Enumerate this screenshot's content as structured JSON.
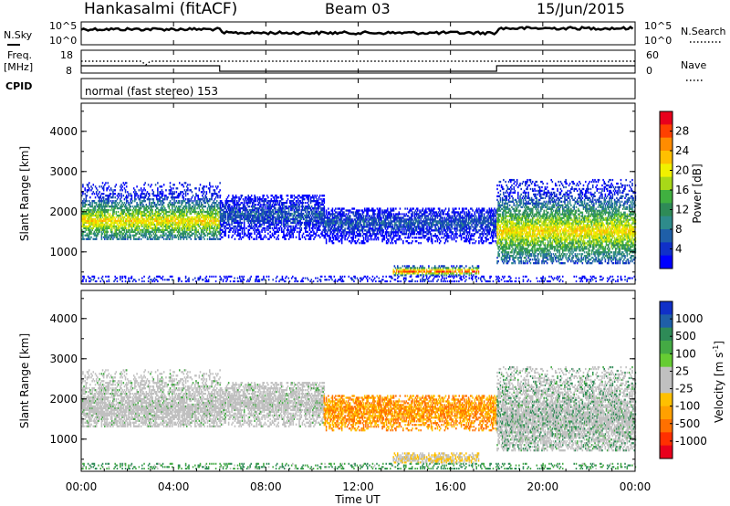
{
  "header": {
    "station": "Hankasalmi (fitACF)",
    "beam": "Beam 03",
    "date": "15/Jun/2015"
  },
  "noise_panel": {
    "left_label": "N.Sky",
    "right_label": "N.Search",
    "left_ticks": [
      "10^5",
      "10^0"
    ],
    "right_ticks": [
      "10^5",
      "10^0"
    ]
  },
  "freq_panel": {
    "left_label_1": "Freq.",
    "left_label_2": "[MHz]",
    "right_label": "Nave",
    "left_ticks": [
      "18",
      "8"
    ],
    "right_ticks": [
      "60",
      "0"
    ]
  },
  "cpid_panel": {
    "label": "CPID",
    "program_text": "normal (fast stereo) 153"
  },
  "x_axis": {
    "label": "Time UT",
    "ticks": [
      "00:00",
      "04:00",
      "08:00",
      "12:00",
      "16:00",
      "20:00",
      "00:00"
    ]
  },
  "power_colorbar": {
    "label": "Power [dB]",
    "ticks": [
      "28",
      "24",
      "20",
      "16",
      "12",
      "8",
      "4"
    ],
    "colors": [
      "#e8001c",
      "#ff4000",
      "#ff8c00",
      "#ffc000",
      "#f0f000",
      "#a8d818",
      "#40b040",
      "#2e8b57",
      "#2e8b8b",
      "#1f5fa8",
      "#1030c8",
      "#0000ff"
    ]
  },
  "velocity_colorbar": {
    "label": "Velocity [m s^-1]",
    "ticks": [
      "1000",
      "500",
      "100",
      "25",
      "-25",
      "-100",
      "-500",
      "-1000"
    ],
    "colors": [
      "#1030c8",
      "#1f5fa8",
      "#2e8b57",
      "#44aa44",
      "#66cc33",
      "#c0c0c0",
      "#c0c0c0",
      "#ffc000",
      "#ffa000",
      "#ff7000",
      "#ff3000",
      "#e8001c"
    ]
  },
  "chart_data": [
    {
      "type": "heatmap",
      "title": "",
      "xlabel": "",
      "ylabel": "Slant Range [km]",
      "yticks": [
        "4000",
        "3000",
        "2000",
        "1000"
      ],
      "xlim": [
        0,
        24
      ],
      "ylim": [
        200,
        4700
      ],
      "colorbar_label": "Power [dB]",
      "colorbar_range": [
        2,
        32
      ],
      "regions": [
        {
          "t0": 0.0,
          "t1": 6.0,
          "r0": 1300,
          "r1": 2700,
          "center_range": 1750,
          "peak_power": 22
        },
        {
          "t0": 6.0,
          "t1": 10.5,
          "r0": 1300,
          "r1": 2400,
          "center_range": 1900,
          "peak_power": 8
        },
        {
          "t0": 10.5,
          "t1": 18.0,
          "r0": 1200,
          "r1": 2100,
          "center_range": 1700,
          "peak_power": 8
        },
        {
          "t0": 13.5,
          "t1": 17.2,
          "r0": 400,
          "r1": 650,
          "center_range": 500,
          "peak_power": 30
        },
        {
          "t0": 18.0,
          "t1": 24.0,
          "r0": 700,
          "r1": 2800,
          "center_range": 1500,
          "peak_power": 22
        },
        {
          "t0": 0.0,
          "t1": 24.0,
          "r0": 250,
          "r1": 400,
          "center_range": 300,
          "peak_power": 6
        }
      ]
    },
    {
      "type": "heatmap",
      "title": "",
      "xlabel": "Time UT",
      "ylabel": "Slant Range [km]",
      "yticks": [
        "4000",
        "3000",
        "2000",
        "1000"
      ],
      "xlim": [
        0,
        24
      ],
      "ylim": [
        200,
        4700
      ],
      "colorbar_label": "Velocity [m s^-1]",
      "regions": [
        {
          "t0": 0.0,
          "t1": 6.0,
          "r0": 1300,
          "r1": 2700,
          "velocity": 0,
          "note": "mostly ground scatter (grey)"
        },
        {
          "t0": 6.0,
          "t1": 10.5,
          "r0": 1300,
          "r1": 2400,
          "velocity": 0
        },
        {
          "t0": 13.3,
          "t1": 13.8,
          "r0": 1500,
          "r1": 2000,
          "velocity": -500
        },
        {
          "t0": 13.5,
          "t1": 17.2,
          "r0": 400,
          "r1": 650,
          "velocity": -100
        },
        {
          "t0": 18.0,
          "t1": 24.0,
          "r0": 700,
          "r1": 2800,
          "velocity": 0
        },
        {
          "t0": 0.0,
          "t1": 24.0,
          "r0": 250,
          "r1": 400,
          "velocity": 100
        }
      ]
    }
  ]
}
